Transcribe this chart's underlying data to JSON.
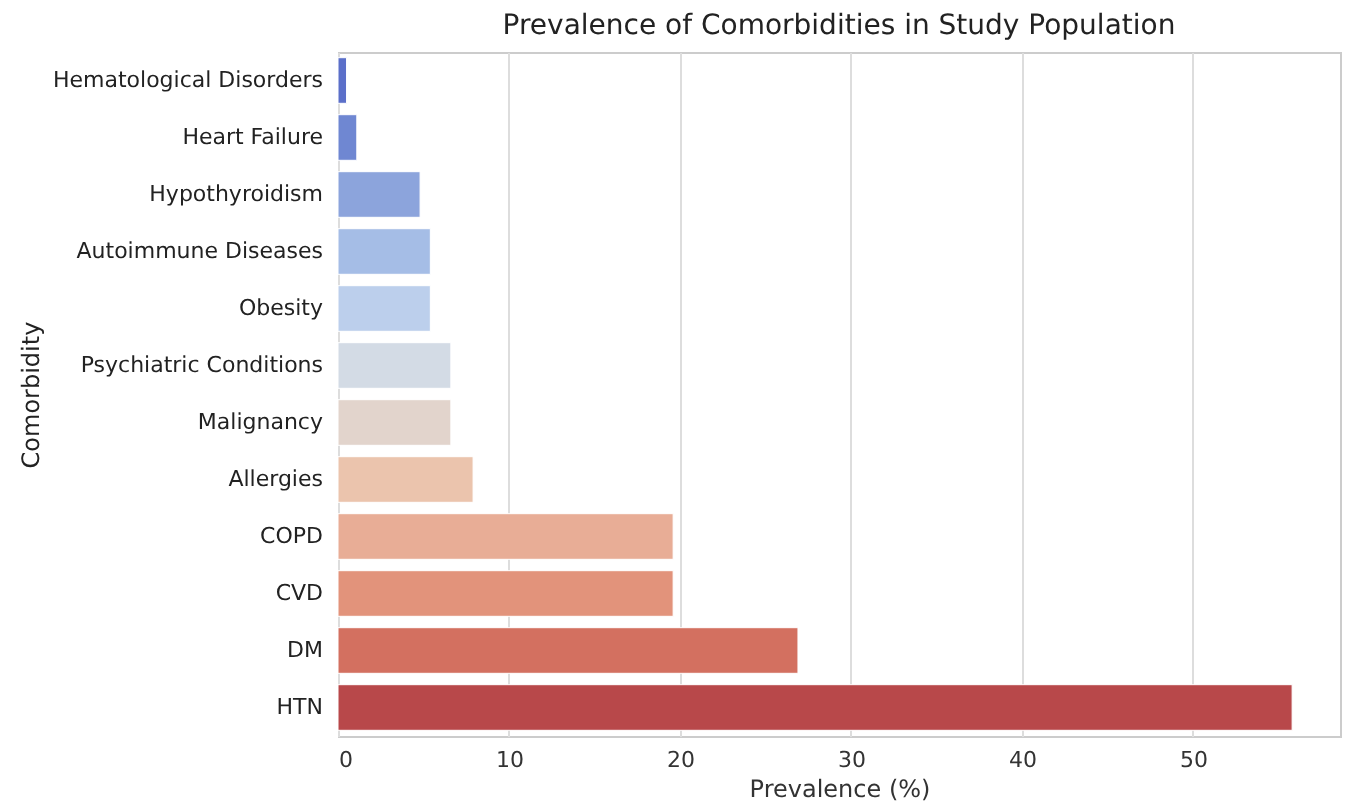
{
  "chart_data": {
    "type": "bar",
    "orientation": "horizontal",
    "title": "Prevalence of Comorbidities in Study Population",
    "xlabel": "Prevalence (%)",
    "ylabel": "Comorbidity",
    "categories": [
      "Hematological Disorders",
      "Heart Failure",
      "Hypothyroidism",
      "Autoimmune Diseases",
      "Obesity",
      "Psychiatric Conditions",
      "Malignancy",
      "Allergies",
      "COPD",
      "CVD",
      "DM",
      "HTN"
    ],
    "values": [
      0.5,
      1.1,
      4.8,
      5.4,
      5.4,
      6.6,
      6.6,
      7.9,
      19.6,
      19.6,
      26.9,
      55.8
    ],
    "colors": [
      "#5b6fc9",
      "#6f87d2",
      "#8ca4dc",
      "#a5bde6",
      "#bccfec",
      "#d3dbe5",
      "#e2d4cc",
      "#ebc4ad",
      "#e8ad96",
      "#e2937b",
      "#d37060",
      "#b8484a"
    ],
    "xlim": [
      0,
      58.6
    ],
    "xticks": [
      0,
      10,
      20,
      30,
      40,
      50
    ],
    "grid": "x",
    "legend": false
  }
}
